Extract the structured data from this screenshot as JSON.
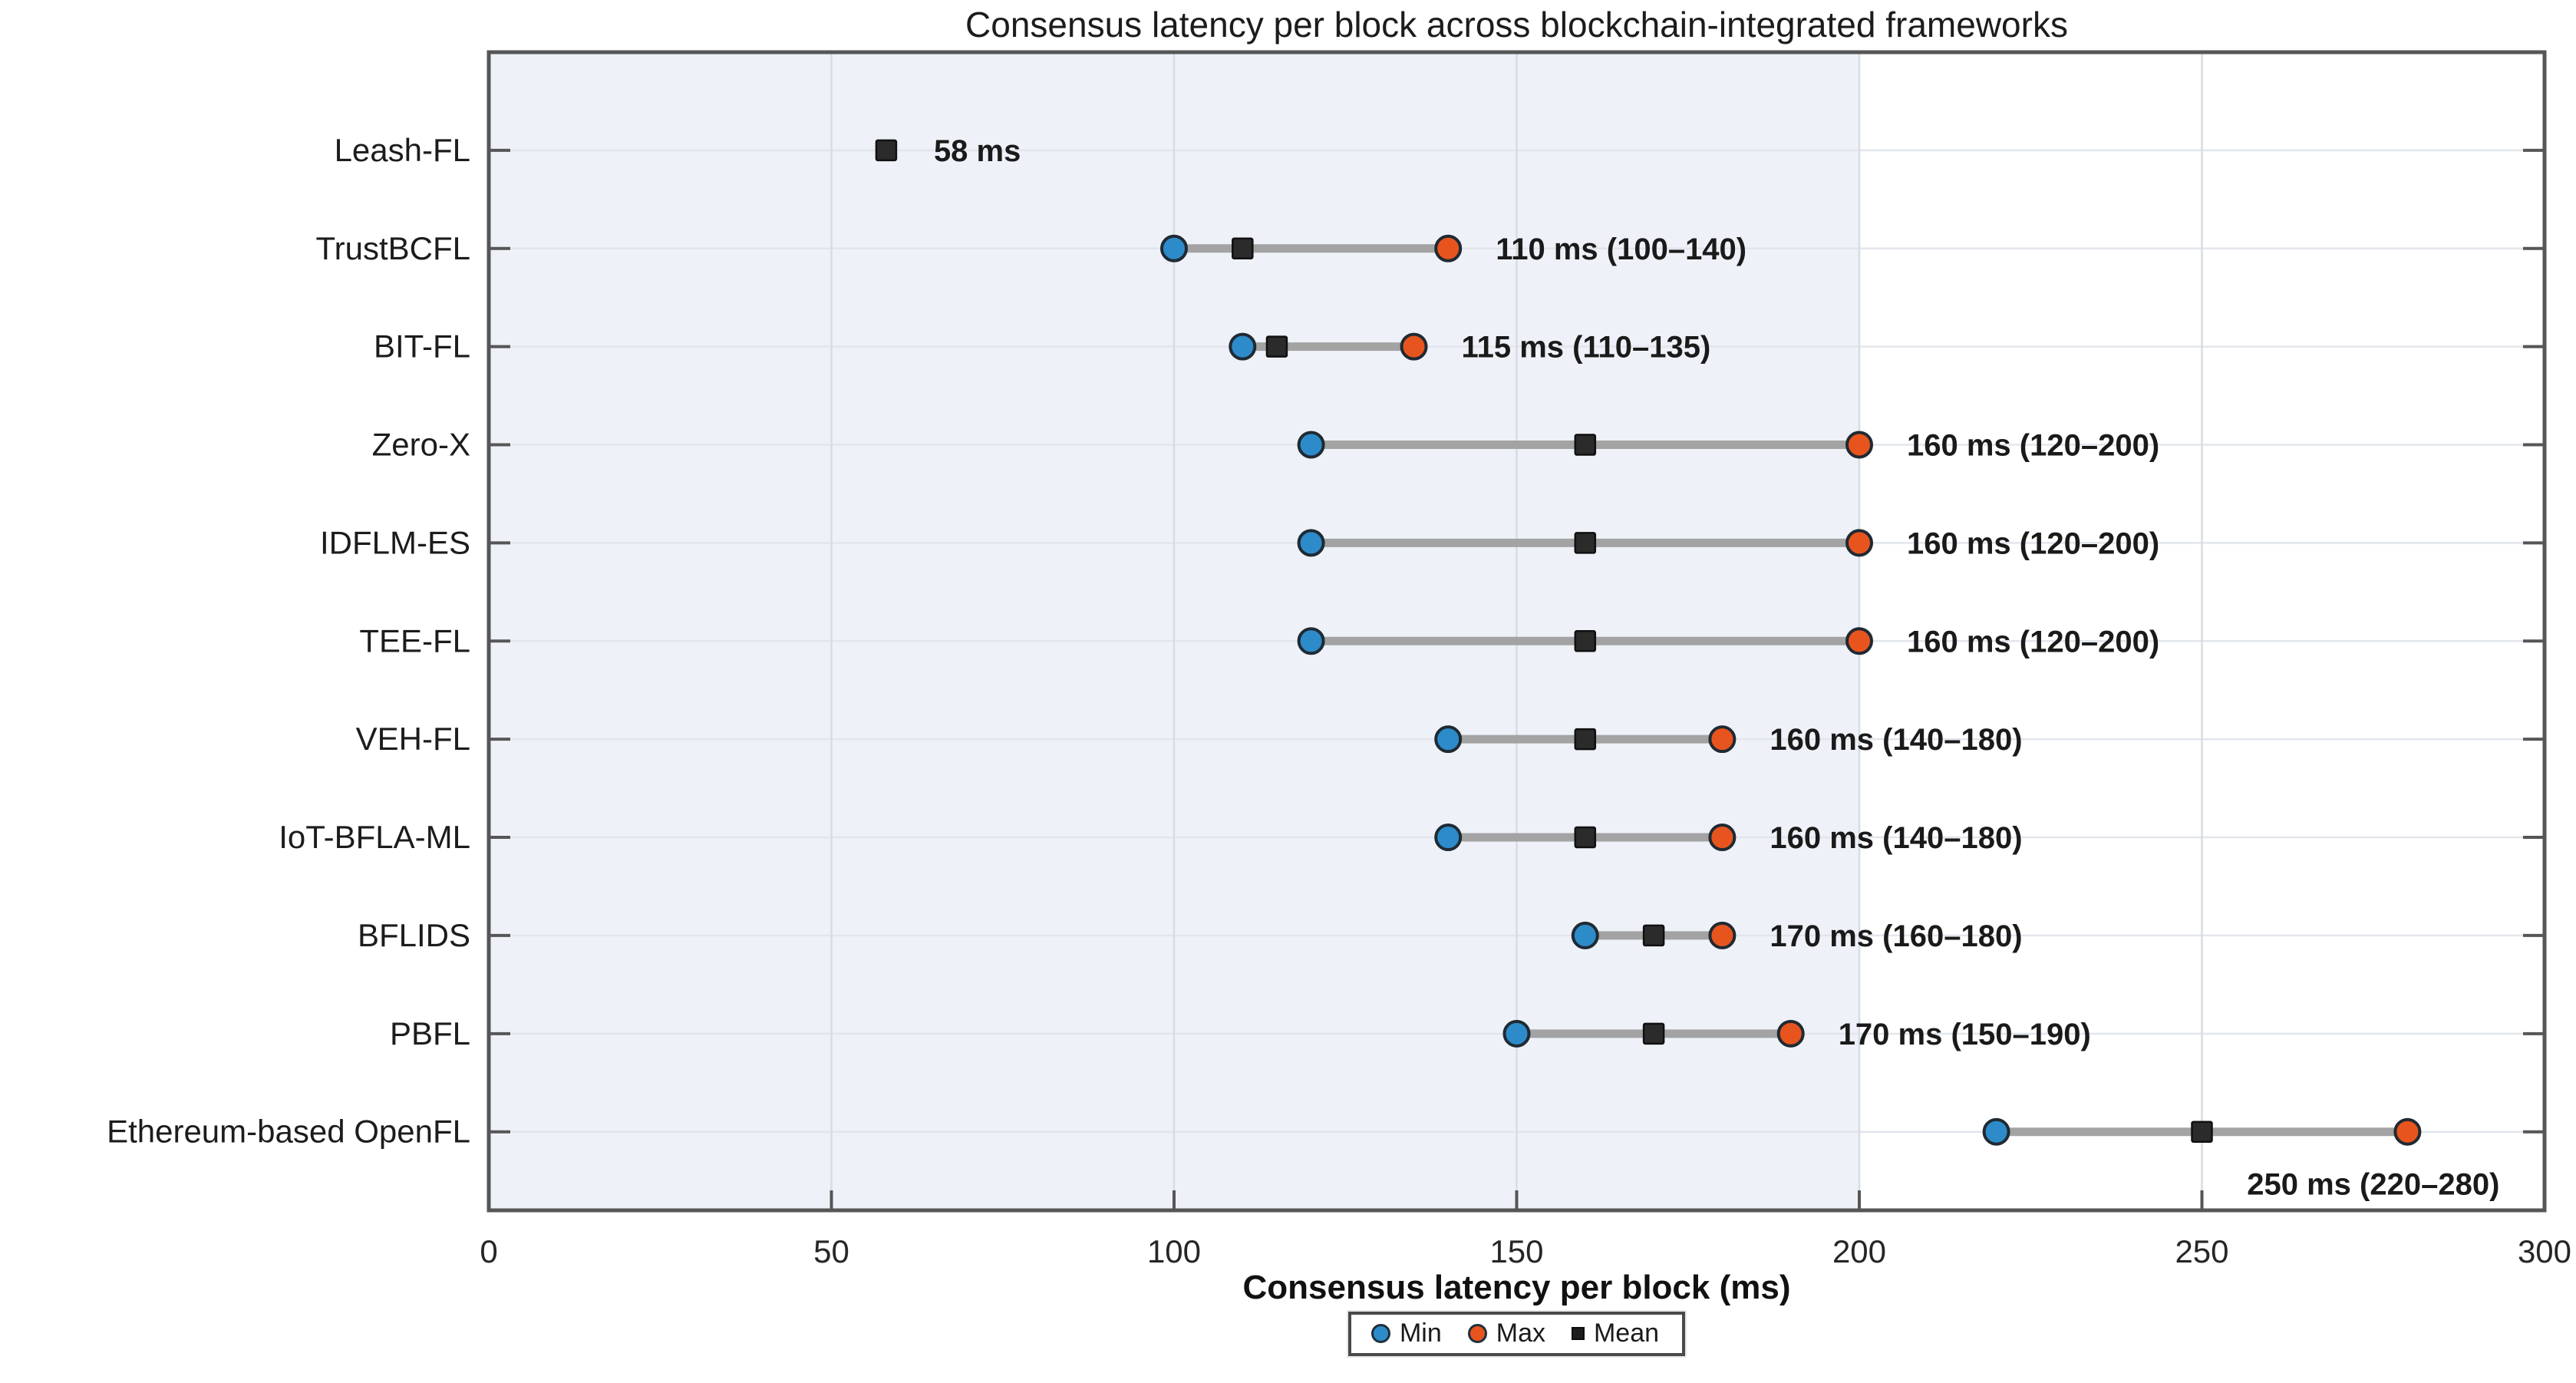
{
  "title": "Consensus latency per block across blockchain-integrated frameworks",
  "x_axis": {
    "label": "Consensus latency per block (ms)",
    "ticks": [
      0,
      50,
      100,
      150,
      200,
      250,
      300
    ],
    "min": 0,
    "max": 300
  },
  "colors": {
    "min": "#2d8bca",
    "max": "#e8541e",
    "mean": "#2b2b2b",
    "marker_edge": "#1f2a33",
    "mean_edge": "#101010",
    "connector": "#a3a3a3",
    "band": "#eef2f8",
    "grid_h": "#e2e6ec",
    "grid_v": "#d7dce3",
    "spine": "#565656",
    "text": "#1c1c1c",
    "tick_text": "#262626",
    "annotation": "#1a1a1a"
  },
  "shaded_band": {
    "from": 0,
    "to": 200
  },
  "legend": {
    "items": [
      {
        "label": "Min",
        "marker": "circle",
        "color": "#2d8bca"
      },
      {
        "label": "Max",
        "marker": "circle",
        "color": "#e8541e"
      },
      {
        "label": "Mean",
        "marker": "square",
        "color": "#1d1d1d"
      }
    ]
  },
  "chart_data": {
    "type": "dumbbell",
    "title": "Consensus latency per block across blockchain-integrated frameworks",
    "xlabel": "Consensus latency per block (ms)",
    "xlim": [
      0,
      300
    ],
    "grid": true,
    "legend_position": "bottom",
    "categories": [
      "Leash-FL",
      "TrustBCFL",
      "BIT-FL",
      "Zero-X",
      "IDFLM-ES",
      "TEE-FL",
      "VEH-FL",
      "IoT-BFLA-ML",
      "BFLIDS",
      "PBFL",
      "Ethereum-based OpenFL"
    ],
    "series": [
      {
        "name": "Min",
        "values": [
          null,
          100,
          110,
          120,
          120,
          120,
          140,
          140,
          160,
          150,
          220
        ]
      },
      {
        "name": "Max",
        "values": [
          null,
          140,
          135,
          200,
          200,
          200,
          180,
          180,
          180,
          190,
          280
        ]
      },
      {
        "name": "Mean",
        "values": [
          58,
          110,
          115,
          160,
          160,
          160,
          160,
          160,
          170,
          170,
          250
        ]
      }
    ],
    "annotations": [
      {
        "text": "58 ms",
        "placement": "right"
      },
      {
        "text": "110 ms (100–140)",
        "placement": "right"
      },
      {
        "text": "115 ms (110–135)",
        "placement": "right"
      },
      {
        "text": "160 ms (120–200)",
        "placement": "right"
      },
      {
        "text": "160 ms (120–200)",
        "placement": "right"
      },
      {
        "text": "160 ms (120–200)",
        "placement": "right"
      },
      {
        "text": "160 ms (140–180)",
        "placement": "right"
      },
      {
        "text": "160 ms (140–180)",
        "placement": "right"
      },
      {
        "text": "170 ms (160–180)",
        "placement": "right"
      },
      {
        "text": "170 ms (150–190)",
        "placement": "right"
      },
      {
        "text": "250 ms (220–280)",
        "placement": "below"
      }
    ]
  }
}
